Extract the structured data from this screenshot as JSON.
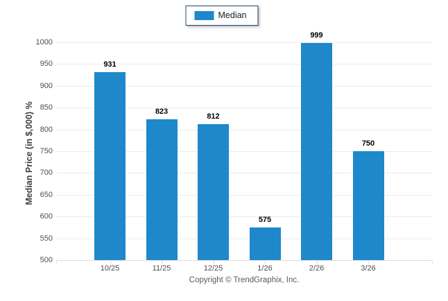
{
  "chart_data": {
    "type": "bar",
    "title": "",
    "categories": [
      "10/25",
      "11/25",
      "12/25",
      "1/26",
      "2/26",
      "3/26"
    ],
    "series": [
      {
        "name": "Median",
        "color": "#1E88CB",
        "values": [
          931,
          823,
          812,
          575,
          999,
          750
        ]
      }
    ],
    "xlabel": "",
    "ylabel": "Median Price (in $,000) %",
    "ylim": [
      500,
      1000
    ],
    "yticks": [
      500,
      550,
      600,
      650,
      700,
      750,
      800,
      850,
      900,
      950,
      1000
    ],
    "grid": true,
    "value_labels": true,
    "legend_position": "top-center"
  },
  "legend": {
    "items": [
      {
        "label": "Median",
        "swatch_color": "#1E88CB"
      }
    ]
  },
  "footer": {
    "copyright": "Copyright © TrendGraphix, Inc."
  },
  "colors": {
    "bar": "#1E88CB",
    "gridline": "#ECECEC",
    "axis_line": "#DCDCDC",
    "tick_mark": "#D9D9D9",
    "legend_border": "#24466B",
    "tick_label": "#4d4d4d",
    "value_label": "#000000",
    "footer_text": "#595959"
  }
}
